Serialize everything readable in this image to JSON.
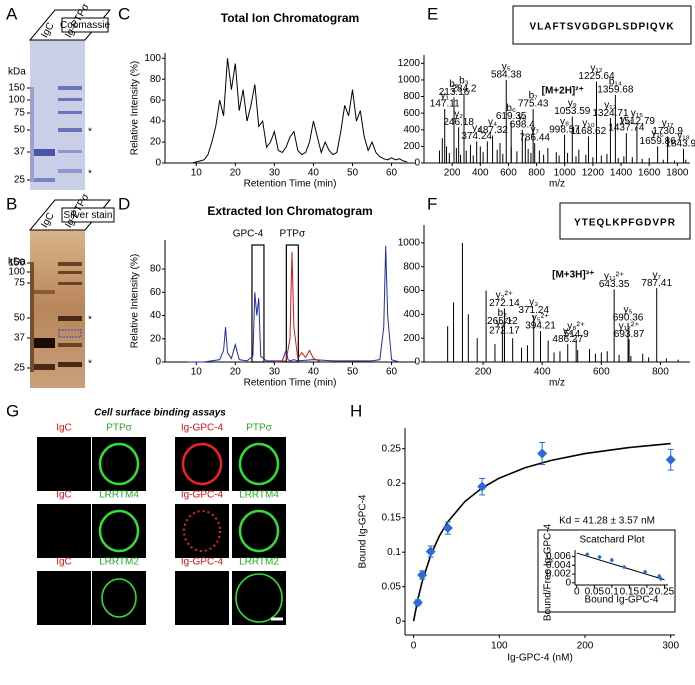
{
  "panels": {
    "A": {
      "label": "A",
      "stain": "Coomassie",
      "unit": "kDa",
      "lanes": [
        "IgC",
        "Ig-PTPσ"
      ],
      "markers": [
        150,
        100,
        75,
        50,
        37,
        25
      ],
      "asterisk": "*"
    },
    "B": {
      "label": "B",
      "stain": "Silver stain",
      "unit": "kDa",
      "lanes": [
        "IgC",
        "Ig-PTPσ"
      ],
      "markers": [
        150,
        100,
        75,
        50,
        37,
        25
      ],
      "asterisk": "*"
    },
    "G": {
      "label": "G",
      "title": "Cell surface binding assays",
      "rows": [
        {
          "labels": [
            "IgC",
            "PTPσ",
            "Ig-GPC-4",
            "PTPσ"
          ]
        },
        {
          "labels": [
            "IgC",
            "LRRTM4",
            "Ig-GPC-4",
            "LRRTM4"
          ]
        },
        {
          "labels": [
            "IgC",
            "LRRTM2",
            "Ig-GPC-4",
            "LRRTM2"
          ]
        }
      ]
    }
  },
  "chart_data": [
    {
      "panel": "C",
      "type": "line",
      "title": "Total Ion Chromatogram",
      "x_label": "Retention Time (min)",
      "y_label": "Relative Intensity (%)",
      "x": [
        8,
        9,
        10,
        11,
        12,
        13,
        14,
        15,
        16,
        17,
        18,
        19,
        20,
        21,
        22,
        23,
        24,
        25,
        26,
        27,
        28,
        29,
        30,
        31,
        32,
        33,
        34,
        35,
        36,
        37,
        38,
        39,
        40,
        41,
        42,
        43,
        44,
        45,
        46,
        47,
        48,
        49,
        50,
        51,
        52,
        53,
        54,
        55,
        56,
        57,
        58,
        59,
        60,
        61,
        62,
        63,
        64
      ],
      "series": [
        {
          "color": "#000000",
          "values": [
            0,
            0,
            1,
            2,
            3,
            8,
            20,
            35,
            60,
            45,
            100,
            70,
            95,
            50,
            70,
            40,
            55,
            75,
            35,
            40,
            15,
            20,
            30,
            12,
            10,
            15,
            25,
            30,
            12,
            8,
            10,
            20,
            40,
            25,
            10,
            20,
            12,
            8,
            10,
            30,
            55,
            45,
            70,
            40,
            50,
            25,
            12,
            20,
            10,
            6,
            4,
            3,
            5,
            3,
            4,
            2,
            1
          ]
        }
      ],
      "xlim": [
        2,
        66
      ],
      "ylim": [
        0,
        105
      ],
      "xticks": [
        10,
        20,
        30,
        40,
        50,
        60
      ],
      "yticks": [
        0,
        20,
        40,
        60,
        80,
        100
      ]
    },
    {
      "panel": "D",
      "type": "line",
      "title": "Extracted Ion Chromatogram",
      "x_label": "Retention Time (min)",
      "y_label": "Relative Intensity (%)",
      "series": [
        {
          "color": "#1f2fa0",
          "x": [
            8,
            12,
            16,
            17,
            17.5,
            18,
            19,
            20,
            21,
            23,
            24.5,
            25,
            25.5,
            26,
            26.5,
            28,
            32,
            33,
            33.5,
            34,
            35,
            36,
            40,
            45,
            50,
            55,
            57,
            58,
            58.5,
            59,
            60,
            62
          ],
          "values": [
            0,
            0,
            2,
            10,
            30,
            8,
            3,
            15,
            2,
            1,
            5,
            60,
            40,
            55,
            5,
            1,
            1,
            10,
            2,
            1,
            2,
            1,
            2,
            1,
            1,
            1,
            2,
            30,
            100,
            40,
            2,
            0
          ]
        },
        {
          "color": "#d01818",
          "x": [
            30,
            33,
            34,
            34.5,
            35,
            36,
            37,
            38,
            39,
            40,
            42
          ],
          "values": [
            0,
            1,
            20,
            95,
            30,
            3,
            8,
            4,
            10,
            3,
            0
          ]
        }
      ],
      "annotations": [
        {
          "text": "GPC-4",
          "x": 25.8
        },
        {
          "text": "PTPσ",
          "x": 34.6
        }
      ],
      "xlim": [
        2,
        66
      ],
      "ylim": [
        0,
        105
      ],
      "xticks": [
        10,
        20,
        30,
        40,
        50,
        60
      ],
      "yticks": [
        0,
        20,
        40,
        60,
        80
      ]
    },
    {
      "panel": "E",
      "type": "spectrum",
      "peptide": "VLAFTSVGDGPLSDPIQVK",
      "x_label": "m/z",
      "peaks": [
        {
          "label": "y₁",
          "mz": 147.11,
          "intensity": 650
        },
        {
          "label": "b₂",
          "mz": 213.16,
          "intensity": 790
        },
        {
          "label": "y₂",
          "mz": 246.18,
          "intensity": 430
        },
        {
          "label": "b₃",
          "mz": 284.2,
          "intensity": 830
        },
        {
          "label": "y₃",
          "mz": 374.24,
          "intensity": 260
        },
        {
          "label": "y₄",
          "mz": 487.32,
          "intensity": 330
        },
        {
          "label": "y₅",
          "mz": 584.38,
          "intensity": 1000
        },
        {
          "label": "b₆",
          "mz": 619.35,
          "intensity": 500
        },
        {
          "label": "y₆",
          "mz": 698.4,
          "intensity": 400
        },
        {
          "label": "b₇",
          "mz": 775.43,
          "intensity": 650
        },
        {
          "label": "y₇",
          "mz": 786.44,
          "intensity": 240
        },
        {
          "label": "y₈",
          "mz": 998.57,
          "intensity": 340
        },
        {
          "label": "y₉",
          "mz": 1053.59,
          "intensity": 560
        },
        {
          "label": "y₁₀",
          "mz": 1168.62,
          "intensity": 320
        },
        {
          "label": "y₁₂",
          "mz": 1225.64,
          "intensity": 980
        },
        {
          "label": "y₁₃",
          "mz": 1324.71,
          "intensity": 540
        },
        {
          "label": "b₁₄",
          "mz": 1359.68,
          "intensity": 820
        },
        {
          "label": "y₁₄",
          "mz": 1437.74,
          "intensity": 360
        },
        {
          "label": "y₁₅",
          "mz": 1512.79,
          "intensity": 440
        },
        {
          "label": "y₁₆",
          "mz": 1659.86,
          "intensity": 200
        },
        {
          "label": "y₁₇",
          "mz": 1730.9,
          "intensity": 320
        },
        {
          "label": "y₁₈",
          "mz": 1843.98,
          "intensity": 170
        }
      ],
      "annotations": [
        {
          "text": "[M+2H]²⁺",
          "x": 986,
          "y": 870
        }
      ],
      "background": {
        "x": [
          110,
          130,
          160,
          180,
          230,
          260,
          300,
          330,
          350,
          400,
          420,
          450,
          520,
          540,
          560,
          620,
          660,
          720,
          740,
          760,
          820,
          850,
          880,
          940,
          960,
          1020,
          1080,
          1100,
          1150,
          1200,
          1260,
          1300,
          1380,
          1420,
          1480,
          1550,
          1600,
          1700,
          1780,
          1860
        ],
        "values": [
          150,
          300,
          200,
          120,
          180,
          100,
          150,
          220,
          90,
          200,
          130,
          260,
          160,
          240,
          110,
          190,
          140,
          300,
          170,
          120,
          150,
          100,
          180,
          130,
          90,
          120,
          80,
          160,
          100,
          70,
          90,
          110,
          60,
          80,
          70,
          50,
          60,
          40,
          30,
          40
        ]
      },
      "xlim": [
        0,
        1890
      ],
      "ylim": [
        0,
        1300
      ],
      "xticks": [
        200,
        400,
        600,
        800,
        1000,
        1200,
        1400,
        1600,
        1800
      ],
      "yticks": [
        0,
        200,
        400,
        600,
        800,
        1000,
        1200
      ]
    },
    {
      "panel": "F",
      "type": "spectrum",
      "peptide": "YTEQLKPFGDVPR",
      "x_label": "m/z",
      "peaks": [
        {
          "label": "b₂",
          "mz": 265.12,
          "intensity": 300
        },
        {
          "label": "y₂²⁺",
          "mz": 272.14,
          "intensity": 450
        },
        {
          "label": "y₄²⁺",
          "mz": 272.17,
          "intensity": 220
        },
        {
          "label": "y₃",
          "mz": 371.24,
          "intensity": 390
        },
        {
          "label": "y₅²⁺",
          "mz": 394.21,
          "intensity": 260
        },
        {
          "label": "y₄",
          "mz": 486.27,
          "intensity": 150
        },
        {
          "label": "y₈²⁺",
          "mz": 514.9,
          "intensity": 190
        },
        {
          "label": "y₁₁²⁺",
          "mz": 643.35,
          "intensity": 610
        },
        {
          "label": "y₅",
          "mz": 690.36,
          "intensity": 330
        },
        {
          "label": "y₁₂²⁺",
          "mz": 693.87,
          "intensity": 190
        },
        {
          "label": "y₇",
          "mz": 787.41,
          "intensity": 620
        }
      ],
      "annotations": [
        {
          "text": "[M+3H]³⁺",
          "x": 505,
          "y": 730
        }
      ],
      "background": {
        "x": [
          80,
          100,
          130,
          150,
          180,
          210,
          240,
          300,
          330,
          350,
          420,
          440,
          460,
          520,
          560,
          580,
          600,
          620,
          660,
          700,
          740,
          760,
          820,
          860
        ],
        "values": [
          300,
          500,
          1000,
          400,
          200,
          600,
          150,
          200,
          120,
          140,
          180,
          80,
          90,
          100,
          110,
          70,
          80,
          90,
          60,
          50,
          70,
          40,
          30,
          20
        ]
      },
      "xlim": [
        0,
        900
      ],
      "ylim": [
        0,
        1150
      ],
      "xticks": [
        200,
        400,
        600,
        800
      ],
      "yticks": [
        0,
        200,
        400,
        600,
        800,
        1000
      ]
    },
    {
      "panel": "H",
      "type": "scatter",
      "x_label": "Ig-GPC-4 (nM)",
      "y_label": "Bound Ig-GPC-4",
      "series": [
        {
          "color": "#2a6cd6",
          "x": [
            5,
            10,
            20,
            40,
            80,
            150,
            300
          ],
          "values": [
            0.027,
            0.067,
            0.101,
            0.135,
            0.195,
            0.243,
            0.234
          ],
          "errors": [
            0.004,
            0.006,
            0.008,
            0.009,
            0.012,
            0.016,
            0.015
          ]
        }
      ],
      "fit": {
        "color": "#000000",
        "x": [
          0,
          5,
          10,
          20,
          30,
          40,
          60,
          80,
          100,
          130,
          160,
          200,
          250,
          300
        ],
        "values": [
          0,
          0.0317,
          0.0571,
          0.0956,
          0.1233,
          0.1441,
          0.1736,
          0.1932,
          0.2074,
          0.2224,
          0.2329,
          0.2429,
          0.2515,
          0.2575
        ]
      },
      "xlim": [
        -10,
        305
      ],
      "ylim": [
        -0.02,
        0.28
      ],
      "xticks": [
        0,
        100,
        200,
        300
      ],
      "yticks": [
        0,
        0.05,
        0.1,
        0.15,
        0.2,
        0.25
      ]
    },
    {
      "type": "scatter",
      "title": "Scatchard Plot",
      "annotation": "Kd = 41.28 ± 3.57 nM",
      "x_label": "Bound Ig-GPC-4",
      "y_label": "Bound/Free Ig-GPC-4",
      "series": [
        {
          "color": "#2a6cd6",
          "x": [
            0.03,
            0.065,
            0.1,
            0.135,
            0.195,
            0.24,
            0.235
          ],
          "values": [
            0.0065,
            0.0059,
            0.0052,
            0.0036,
            0.0025,
            0.0009,
            0.0015
          ],
          "errors": [
            0.0002,
            0.0002,
            0.0003,
            0.0002,
            0.0002,
            0.0002,
            0.0003
          ]
        }
      ],
      "fit": {
        "color": "#000000",
        "x": [
          0,
          0.25
        ],
        "values": [
          0.0068,
          0.0007
        ]
      },
      "xlim": [
        -0.005,
        0.26
      ],
      "ylim": [
        -0.0005,
        0.0075
      ],
      "xticks": [
        0,
        0.05,
        0.1,
        0.15,
        0.2,
        0.25
      ],
      "yticks": [
        0,
        0.002,
        0.004,
        0.006
      ]
    }
  ]
}
